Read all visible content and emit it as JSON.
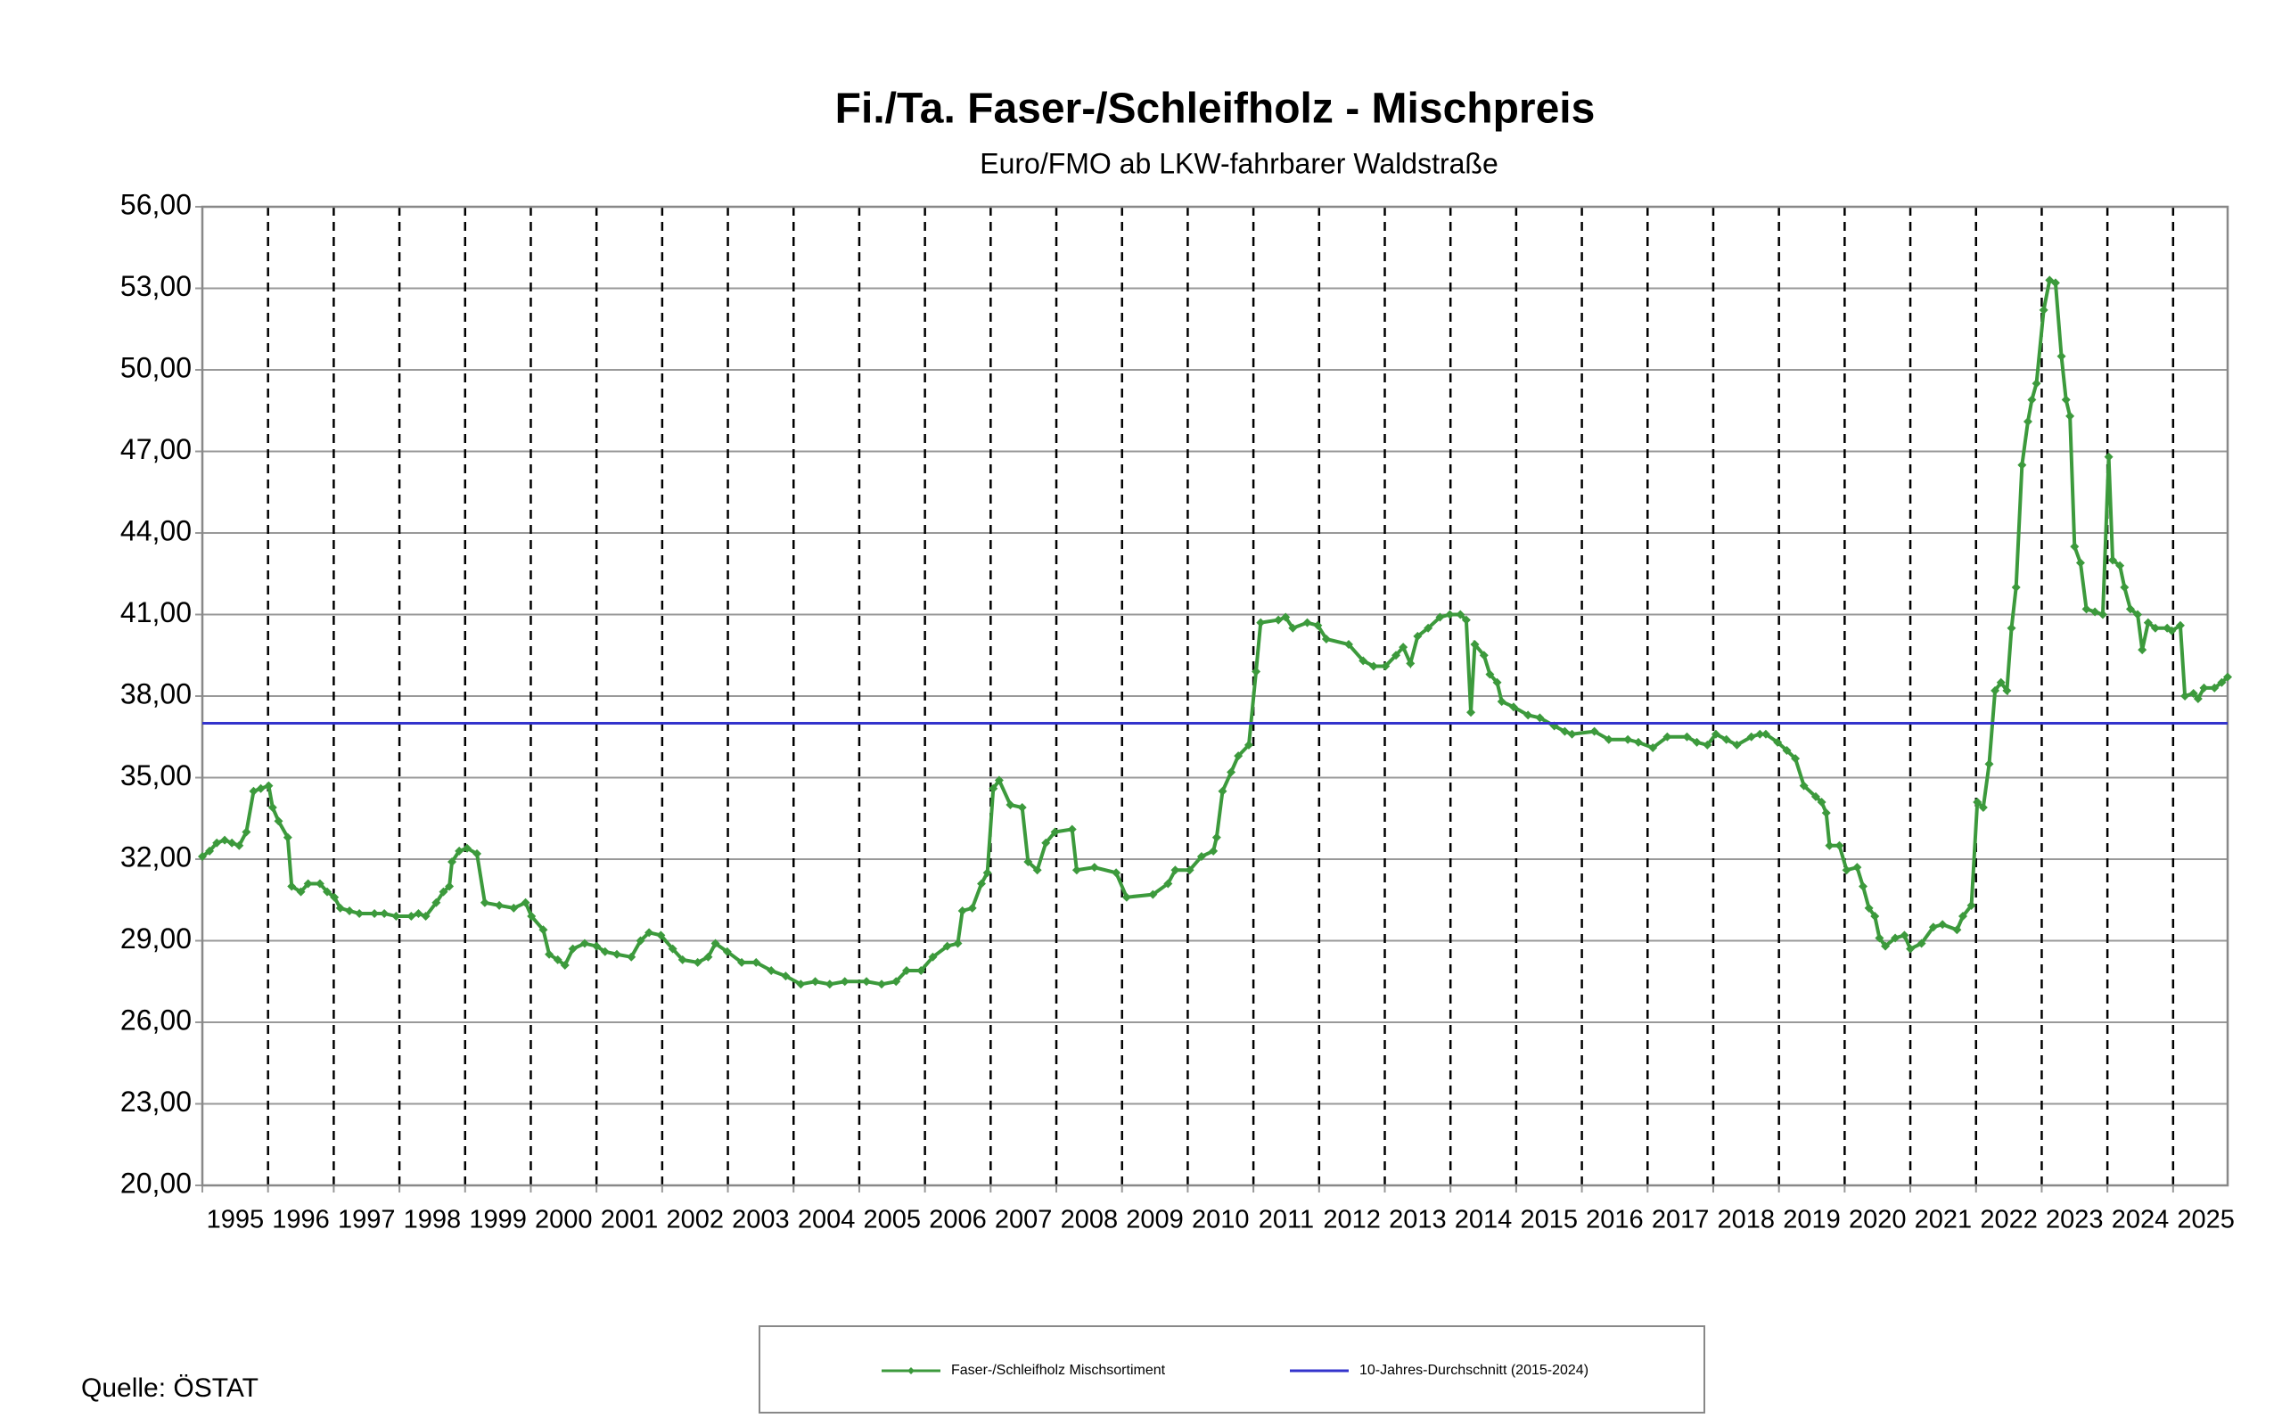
{
  "chart_data": {
    "type": "line",
    "title": "Fi./Ta. Faser-/Schleifholz - Mischpreis",
    "subtitle": "Euro/FMO ab LKW-fahrbarer Waldstraße",
    "source": "Quelle: ÖSTAT",
    "xlim": [
      1995,
      2025.83
    ],
    "xticks": [
      1995,
      1996,
      1997,
      1998,
      1999,
      2000,
      2001,
      2002,
      2003,
      2004,
      2005,
      2006,
      2007,
      2008,
      2009,
      2010,
      2011,
      2012,
      2013,
      2014,
      2015,
      2016,
      2017,
      2018,
      2019,
      2020,
      2021,
      2022,
      2023,
      2024,
      2025
    ],
    "ylim": [
      20,
      56
    ],
    "yticks": [
      {
        "value": 20,
        "label": "20,00"
      },
      {
        "value": 23,
        "label": "23,00"
      },
      {
        "value": 26,
        "label": "26,00"
      },
      {
        "value": 29,
        "label": "29,00"
      },
      {
        "value": 32,
        "label": "32,00"
      },
      {
        "value": 35,
        "label": "35,00"
      },
      {
        "value": 38,
        "label": "38,00"
      },
      {
        "value": 41,
        "label": "41,00"
      },
      {
        "value": 44,
        "label": "44,00"
      },
      {
        "value": 47,
        "label": "47,00"
      },
      {
        "value": 50,
        "label": "50,00"
      },
      {
        "value": 53,
        "label": "53,00"
      },
      {
        "value": 56,
        "label": "56,00"
      }
    ],
    "grid": true,
    "legend": "bottom",
    "series": [
      {
        "name": "Faser-/Schleifholz Mischsortiment",
        "color": "#3c9a3c",
        "markers": true,
        "x": [
          1995.0,
          1995.11,
          1995.22,
          1995.34,
          1995.45,
          1995.56,
          1995.67,
          1995.78,
          1995.89,
          1996.01,
          1996.07,
          1996.16,
          1996.3,
          1996.36,
          1996.5,
          1996.61,
          1996.79,
          1996.9,
          1997.01,
          1997.1,
          1997.24,
          1997.39,
          1997.62,
          1997.77,
          1997.95,
          1998.18,
          1998.29,
          1998.4,
          1998.56,
          1998.67,
          1998.76,
          1998.8,
          1998.91,
          1999.03,
          1999.18,
          1999.3,
          1999.52,
          1999.74,
          1999.92,
          2000.01,
          2000.19,
          2000.28,
          2000.41,
          2000.52,
          2000.64,
          2000.82,
          2001.0,
          2001.13,
          2001.31,
          2001.53,
          2001.67,
          2001.8,
          2001.98,
          2002.16,
          2002.31,
          2002.54,
          2002.7,
          2002.81,
          2002.99,
          2003.21,
          2003.43,
          2003.66,
          2003.88,
          2004.11,
          2004.33,
          2004.55,
          2004.78,
          2005.11,
          2005.34,
          2005.56,
          2005.72,
          2005.94,
          2006.12,
          2006.34,
          2006.5,
          2006.57,
          2006.72,
          2006.86,
          2006.95,
          2007.04,
          2007.13,
          2007.3,
          2007.48,
          2007.57,
          2007.71,
          2007.84,
          2007.98,
          2008.24,
          2008.31,
          2008.58,
          2008.91,
          2009.07,
          2009.47,
          2009.7,
          2009.81,
          2010.03,
          2010.21,
          2010.39,
          2010.44,
          2010.53,
          2010.66,
          2010.77,
          2010.93,
          2011.04,
          2011.11,
          2011.38,
          2011.49,
          2011.6,
          2011.82,
          2011.98,
          2012.11,
          2012.45,
          2012.67,
          2012.83,
          2013.01,
          2013.17,
          2013.28,
          2013.39,
          2013.5,
          2013.66,
          2013.84,
          2013.99,
          2014.15,
          2014.24,
          2014.31,
          2014.37,
          2014.51,
          2014.6,
          2014.71,
          2014.78,
          2014.96,
          2015.18,
          2015.36,
          2015.58,
          2015.74,
          2015.85,
          2016.19,
          2016.41,
          2016.7,
          2016.86,
          2017.08,
          2017.3,
          2017.6,
          2017.75,
          2017.91,
          2018.04,
          2018.2,
          2018.36,
          2018.58,
          2018.71,
          2018.8,
          2018.98,
          2019.12,
          2019.25,
          2019.38,
          2019.56,
          2019.65,
          2019.72,
          2019.77,
          2019.92,
          2020.03,
          2020.19,
          2020.28,
          2020.37,
          2020.46,
          2020.53,
          2020.62,
          2020.77,
          2020.91,
          2021.0,
          2021.17,
          2021.35,
          2021.49,
          2021.71,
          2021.8,
          2021.93,
          2022.02,
          2022.11,
          2022.2,
          2022.29,
          2022.38,
          2022.47,
          2022.54,
          2022.61,
          2022.7,
          2022.79,
          2022.85,
          2022.92,
          2023.03,
          2023.12,
          2023.21,
          2023.3,
          2023.37,
          2023.43,
          2023.5,
          2023.59,
          2023.68,
          2023.81,
          2023.93,
          2024.02,
          2024.08,
          2024.19,
          2024.26,
          2024.35,
          2024.46,
          2024.53,
          2024.62,
          2024.73,
          2024.91,
          2024.98,
          2025.11,
          2025.18,
          2025.31,
          2025.38,
          2025.47,
          2025.63,
          2025.74,
          2025.83
        ],
        "values": [
          32.1,
          32.3,
          32.6,
          32.7,
          32.6,
          32.5,
          33.0,
          34.5,
          34.6,
          34.7,
          33.9,
          33.4,
          32.8,
          31.0,
          30.8,
          31.1,
          31.1,
          30.8,
          30.6,
          30.2,
          30.1,
          30.0,
          30.0,
          30.0,
          29.9,
          29.9,
          30.0,
          29.9,
          30.4,
          30.8,
          31.0,
          31.9,
          32.3,
          32.4,
          32.2,
          30.4,
          30.3,
          30.2,
          30.4,
          29.9,
          29.4,
          28.5,
          28.3,
          28.1,
          28.7,
          28.9,
          28.8,
          28.6,
          28.5,
          28.4,
          29.0,
          29.3,
          29.2,
          28.7,
          28.3,
          28.2,
          28.4,
          28.9,
          28.6,
          28.2,
          28.2,
          27.9,
          27.7,
          27.4,
          27.5,
          27.4,
          27.5,
          27.5,
          27.4,
          27.5,
          27.9,
          27.9,
          28.4,
          28.8,
          28.9,
          30.1,
          30.2,
          31.1,
          31.5,
          34.6,
          34.9,
          34.0,
          33.9,
          31.9,
          31.6,
          32.6,
          33.0,
          33.1,
          31.6,
          31.7,
          31.5,
          30.6,
          30.7,
          31.1,
          31.6,
          31.6,
          32.1,
          32.3,
          32.8,
          34.5,
          35.2,
          35.8,
          36.2,
          38.9,
          40.7,
          40.8,
          40.9,
          40.5,
          40.7,
          40.6,
          40.1,
          39.9,
          39.3,
          39.1,
          39.1,
          39.5,
          39.8,
          39.2,
          40.2,
          40.5,
          40.9,
          41.0,
          41.0,
          40.8,
          37.4,
          39.9,
          39.5,
          38.8,
          38.5,
          37.8,
          37.6,
          37.3,
          37.2,
          36.9,
          36.7,
          36.6,
          36.7,
          36.4,
          36.4,
          36.3,
          36.1,
          36.5,
          36.5,
          36.3,
          36.2,
          36.6,
          36.4,
          36.2,
          36.5,
          36.6,
          36.6,
          36.3,
          36.0,
          35.7,
          34.7,
          34.3,
          34.1,
          33.7,
          32.5,
          32.5,
          31.6,
          31.7,
          31.0,
          30.2,
          29.9,
          29.1,
          28.8,
          29.1,
          29.2,
          28.7,
          28.9,
          29.5,
          29.6,
          29.4,
          29.9,
          30.3,
          34.1,
          33.9,
          35.5,
          38.2,
          38.5,
          38.2,
          40.5,
          42.0,
          46.5,
          48.1,
          48.9,
          49.5,
          52.2,
          53.3,
          53.2,
          50.5,
          48.9,
          48.3,
          43.5,
          42.9,
          41.2,
          41.1,
          41.0,
          46.8,
          43.0,
          42.8,
          42.0,
          41.2,
          41.0,
          39.7,
          40.7,
          40.5,
          40.5,
          40.4,
          40.6,
          38.0,
          38.1,
          37.9,
          38.3,
          38.3,
          38.5,
          38.7
        ]
      },
      {
        "name": "10-Jahres-Durchschnitt (2015-2024)",
        "color": "#3333cc",
        "markers": false,
        "x": [
          1995.0,
          2025.83
        ],
        "values": [
          37.0,
          37.0
        ]
      }
    ]
  }
}
